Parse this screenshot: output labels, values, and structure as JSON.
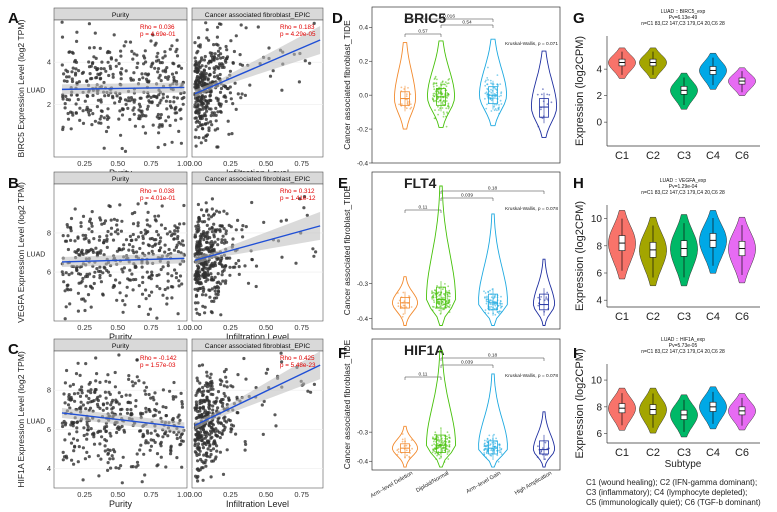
{
  "panels": {
    "A": "A",
    "B": "B",
    "C": "C",
    "D": "D",
    "E": "E",
    "F": "F",
    "G": "G",
    "H": "H",
    "I": "I"
  },
  "colors": {
    "timer_point": "#303030",
    "timer_line": "#1f4fd6",
    "timer_band": "#bbbbbb",
    "tide": [
      "#f28a2e",
      "#47c10a",
      "#1ea9e0",
      "#1f2fa0"
    ],
    "subtype": [
      "#f8736a",
      "#a3a500",
      "#00b867",
      "#00a8e6",
      "#e76bf3"
    ]
  },
  "chart_data": [
    {
      "id": "timer",
      "type": "scatter",
      "strip_labels": [
        "Purity",
        "Cancer associated fibroblast_EPIC"
      ],
      "xlabel_left": "Purity",
      "xlabel_right": "Infiltration Level",
      "left_ticks": [
        "0.25",
        "0.50",
        "0.75",
        "1.00"
      ],
      "right_ticks": [
        "0.00",
        "0.25",
        "0.50",
        "0.75"
      ],
      "luad": "LUAD",
      "rows": [
        {
          "ylabel": "BIRC5 Expression Level (log2 TPM)",
          "yticks": [
            "2",
            "4"
          ],
          "ylim": [
            -0.5,
            6
          ],
          "ticks_at": [
            2,
            4
          ],
          "xlabel_left": "Purity",
          "purity": {
            "rho": "Rho = 0.036",
            "p": "p = 4.69e-01",
            "y0": 2.7,
            "slope": 0.1
          },
          "caf": {
            "rho": "Rho = 0.183",
            "p": "p = 4.29e-05",
            "y0": 2.5,
            "slope": 2.9
          }
        },
        {
          "ylabel": "VEGFA Expression Level (log2 TPM)",
          "yticks": [
            "6",
            "8"
          ],
          "ylim": [
            3.5,
            10.5
          ],
          "ticks_at": [
            6,
            8
          ],
          "xlabel_left": "Purity",
          "purity": {
            "rho": "Rho = 0.038",
            "p": "p = 4.01e-01",
            "y0": 6.5,
            "slope": 0.2
          },
          "caf": {
            "rho": "Rho = 0.312",
            "p": "p = 1.41e-12",
            "y0": 6.6,
            "slope": 2.0
          }
        },
        {
          "ylabel": "HIF1A Expression Level (log2 TPM)",
          "yticks": [
            "4",
            "6",
            "8"
          ],
          "ylim": [
            3,
            10
          ],
          "ticks_at": [
            4,
            6,
            8
          ],
          "xlabel_left": "Purity",
          "purity": {
            "rho": "Rho = -0.142",
            "p": "p = 1.57e-03",
            "y0": 6.9,
            "slope": -0.8
          },
          "caf": {
            "rho": "Rho = 0.425",
            "p": "p = 5.48e-23",
            "y0": 6.2,
            "slope": 3.5
          }
        }
      ]
    },
    {
      "id": "tide",
      "type": "violin",
      "categories": [
        "Arm--level Deletion",
        "Diploid/Normal",
        "Arm--level Gain",
        "High Amplication"
      ],
      "ylabel": "Cancer associated fibroblast_TIDE",
      "genes": [
        {
          "name": "BRIC5",
          "yticks": [
            "0.4",
            "0.2",
            "0.0",
            "-0.2",
            "-0.4"
          ],
          "tick_vals": [
            0.4,
            0.2,
            0,
            -0.2,
            -0.4
          ],
          "ylim": [
            -0.4,
            0.52
          ],
          "medians": [
            -0.02,
            -0.01,
            0.0,
            -0.07
          ],
          "q1": [
            -0.06,
            -0.06,
            -0.05,
            -0.13
          ],
          "q3": [
            0.02,
            0.04,
            0.05,
            -0.02
          ],
          "brackets": [
            {
              "a": 0,
              "b": 1,
              "label": "0.57"
            },
            {
              "a": 1,
              "b": 2,
              "label": "0.54"
            },
            {
              "a": 0,
              "b": 2,
              "label": "0.016"
            }
          ],
          "kw": "Kruskal-Wallis, p = 0.071"
        },
        {
          "name": "FLT4",
          "yticks": [
            "-0.3",
            "-0.4"
          ],
          "tick_vals": [
            -0.3,
            -0.4
          ],
          "ylim": [
            -0.43,
            0.02
          ],
          "medians": [
            -0.355,
            -0.345,
            -0.355,
            -0.36
          ],
          "q1": [
            -0.37,
            -0.37,
            -0.375,
            -0.375
          ],
          "q3": [
            -0.34,
            -0.31,
            -0.33,
            -0.33
          ],
          "brackets": [
            {
              "a": 0,
              "b": 1,
              "label": "0.11"
            },
            {
              "a": 1,
              "b": 2,
              "label": "0.039"
            },
            {
              "a": 1,
              "b": 3,
              "label": "0.18"
            }
          ],
          "kw": "Kruskal-Wallis, p = 0.078"
        },
        {
          "name": "HIF1A",
          "yticks": [
            "-0.3",
            "-0.4"
          ],
          "tick_vals": [
            -0.3,
            -0.4
          ],
          "ylim": [
            -0.43,
            0.02
          ],
          "medians": [
            -0.355,
            -0.345,
            -0.355,
            -0.36
          ],
          "q1": [
            -0.37,
            -0.37,
            -0.375,
            -0.375
          ],
          "q3": [
            -0.34,
            -0.31,
            -0.33,
            -0.33
          ],
          "brackets": [
            {
              "a": 0,
              "b": 1,
              "label": "0.11"
            },
            {
              "a": 1,
              "b": 2,
              "label": "0.039"
            },
            {
              "a": 1,
              "b": 3,
              "label": "0.18"
            }
          ],
          "kw": "Kruskal-Wallis, p = 0.078"
        }
      ]
    },
    {
      "id": "subtype",
      "type": "violin",
      "categories": [
        "C1",
        "C2",
        "C3",
        "C4",
        "C6"
      ],
      "ylabel": "Expression (log2CPM)",
      "xlabel": "Subtype",
      "panels": [
        {
          "title": "LUAD :: BIRC5_exp",
          "pv": "Pv=6.13e-49",
          "n": "n=C1 83,C2 147,C3 179,C4 20,C6 28",
          "yticks": [
            "4",
            "2",
            "0"
          ],
          "tick_vals": [
            4,
            2,
            0
          ],
          "ylim": [
            -1.8,
            6.5
          ],
          "medians": [
            4.5,
            4.5,
            2.4,
            3.9,
            3.1
          ],
          "spread": [
            1.1,
            1.1,
            1.3,
            1.3,
            1.0
          ]
        },
        {
          "title": "LUAD :: VEGFA_exp",
          "pv": "Pv=1.29e-04",
          "n": "n=C1 83,C2 147,C3 179,C4 20,C6 28",
          "yticks": [
            "10",
            "8",
            "6",
            "4"
          ],
          "tick_vals": [
            10,
            8,
            6,
            4
          ],
          "ylim": [
            3.5,
            11
          ],
          "medians": [
            8.2,
            7.7,
            7.8,
            8.4,
            7.8
          ],
          "spread": [
            2.4,
            2.4,
            2.5,
            2.2,
            2.3
          ]
        },
        {
          "title": "LUAD :: HIF1A_exp",
          "pv": "Pv=5.73e-05",
          "n": "n=C1 83,C2 147,C3 179,C4 20,C6 28",
          "yticks": [
            "10",
            "8",
            "6"
          ],
          "tick_vals": [
            10,
            8,
            6
          ],
          "ylim": [
            5.3,
            11.2
          ],
          "medians": [
            7.9,
            7.8,
            7.4,
            8.0,
            7.7
          ],
          "spread": [
            1.5,
            1.6,
            1.5,
            1.5,
            1.3
          ]
        }
      ],
      "legend": [
        "C1 (wound healing); C2 (IFN-gamma dominant);",
        "C3 (inflammatory); C4 (lymphocyte depleted);",
        "C5 (immunologically quiet); C6 (TGF-b dominant)"
      ]
    }
  ]
}
